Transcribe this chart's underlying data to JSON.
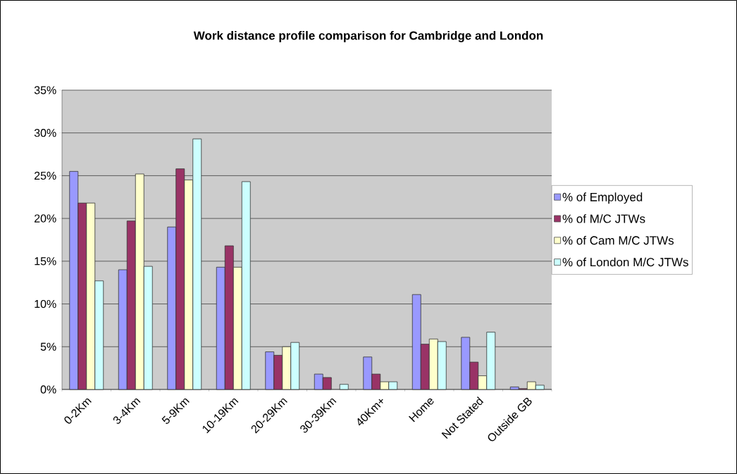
{
  "chart_data": {
    "type": "bar",
    "title": "Work distance profile comparison for Cambridge and London",
    "categories": [
      "0-2Km",
      "3-4Km",
      "5-9Km",
      "10-19Km",
      "20-29Km",
      "30-39Km",
      "40Km+",
      "Home",
      "Not Stated",
      "Outside GB"
    ],
    "series": [
      {
        "name": "% of Employed",
        "color": "#9999ff",
        "values": [
          25.5,
          14.0,
          19.0,
          14.3,
          4.4,
          1.8,
          3.8,
          11.1,
          6.1,
          0.3
        ]
      },
      {
        "name": "% of M/C JTWs",
        "color": "#993366",
        "values": [
          21.8,
          19.7,
          25.8,
          16.8,
          4.0,
          1.4,
          1.8,
          5.3,
          3.2,
          0.1
        ]
      },
      {
        "name": "% of Cam M/C JTWs",
        "color": "#ffffcc",
        "values": [
          21.8,
          25.2,
          24.5,
          14.3,
          5.0,
          null,
          0.9,
          5.9,
          1.6,
          0.9
        ]
      },
      {
        "name": "% of London M/C JTWs",
        "color": "#ccffff",
        "values": [
          12.7,
          14.4,
          29.3,
          24.3,
          5.5,
          0.6,
          0.9,
          5.6,
          6.7,
          0.5
        ]
      }
    ],
    "ylim": [
      0,
      35
    ],
    "yticks": [
      {
        "value": 0,
        "label": "0%"
      },
      {
        "value": 5,
        "label": "5%"
      },
      {
        "value": 10,
        "label": "10%"
      },
      {
        "value": 15,
        "label": "15%"
      },
      {
        "value": 20,
        "label": "20%"
      },
      {
        "value": 25,
        "label": "25%"
      },
      {
        "value": 30,
        "label": "30%"
      },
      {
        "value": 35,
        "label": "35%"
      }
    ],
    "grid": "y",
    "legend": "right"
  }
}
